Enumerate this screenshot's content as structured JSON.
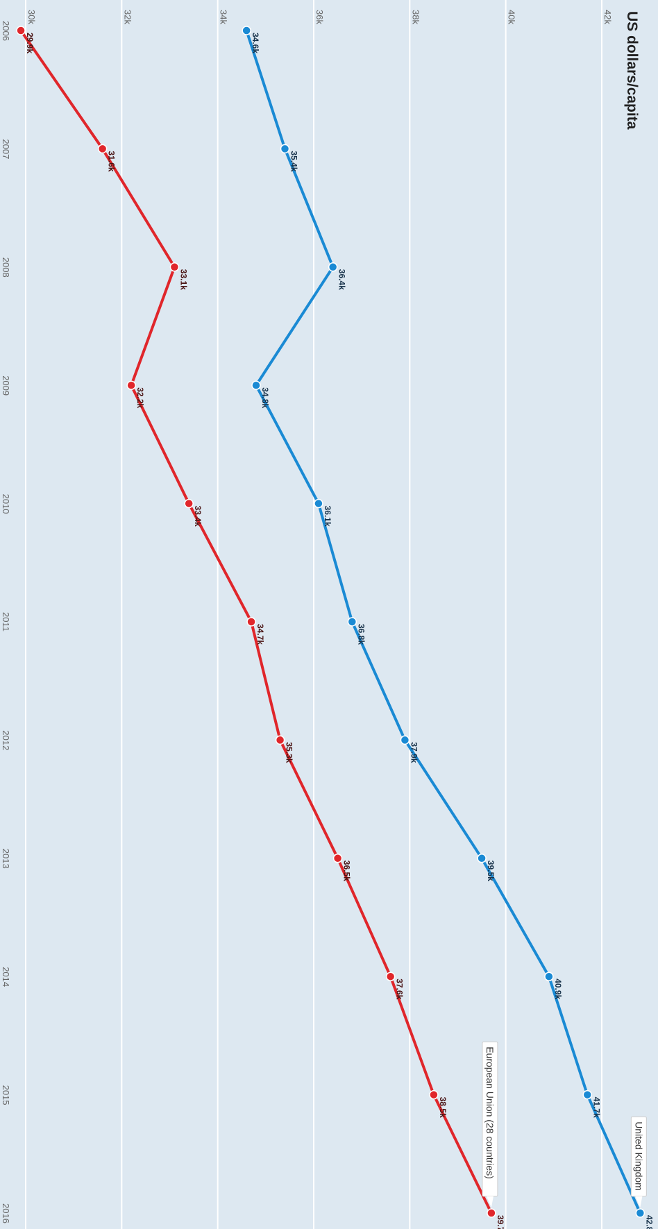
{
  "chart_data": {
    "type": "line",
    "title": "US dollars/capita",
    "x": [
      2006,
      2007,
      2008,
      2009,
      2010,
      2011,
      2012,
      2013,
      2014,
      2015,
      2016
    ],
    "x_tick_labels": [
      "2006",
      "2007",
      "2008",
      "2009",
      "2010",
      "2011",
      "2012",
      "2013",
      "2014",
      "2015",
      "2016"
    ],
    "y_ticks": [
      30000,
      32000,
      34000,
      36000,
      38000,
      40000,
      42000
    ],
    "y_tick_labels": [
      "30k",
      "32k",
      "34k",
      "36k",
      "38k",
      "40k",
      "42k"
    ],
    "ylim": [
      29800,
      43000
    ],
    "grid": true,
    "series": [
      {
        "name": "United Kingdom",
        "color": "#1a8ad4",
        "values": [
          34600,
          35400,
          36400,
          34800,
          36100,
          36800,
          37900,
          39500,
          40900,
          41700,
          42800
        ],
        "labels": [
          "34.6k",
          "35.4k",
          "36.4k",
          "34.8k",
          "36.1k",
          "36.8k",
          "37.9k",
          "39.5k",
          "40.9k",
          "41.7k",
          "42.8k"
        ]
      },
      {
        "name": "European Union (28 countries)",
        "color": "#e0262b",
        "values": [
          29900,
          31600,
          33100,
          32200,
          33400,
          34700,
          35300,
          36500,
          37600,
          38500,
          39700
        ],
        "labels": [
          "29.9k",
          "31.6k",
          "33.1k",
          "32.2k",
          "33.4k",
          "34.7k",
          "35.3k",
          "36.5k",
          "37.6k",
          "38.5k",
          "39.7k"
        ]
      }
    ]
  }
}
